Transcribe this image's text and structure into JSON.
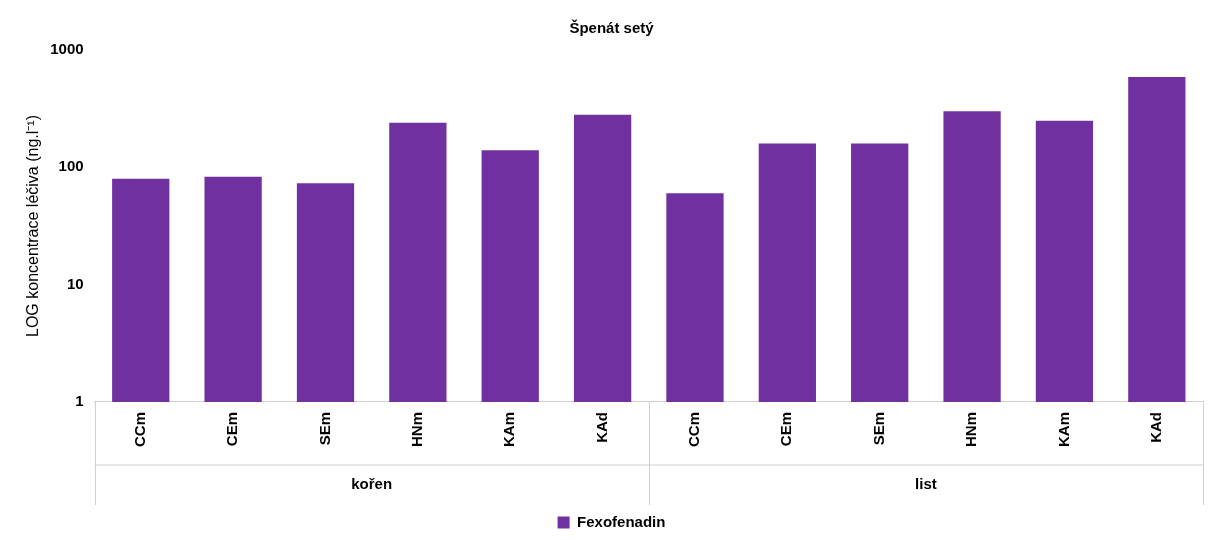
{
  "chart_data": {
    "type": "bar",
    "title": "Špenát setý",
    "ylabel": "LOG koncentrace léčiva (ng.l⁻¹)",
    "categories": [
      "CCm",
      "CEm",
      "SEm",
      "HNm",
      "KAm",
      "KAd",
      "CCm",
      "CEm",
      "SEm",
      "HNm",
      "KAm",
      "KAd"
    ],
    "series": [
      {
        "name": "Fexofenadin",
        "color": "#7030a0",
        "values": [
          80,
          83,
          73,
          240,
          140,
          280,
          60,
          160,
          160,
          300,
          250,
          590
        ]
      }
    ],
    "annotations": [
      "kořen",
      "list"
    ],
    "log": true,
    "ylim": [
      1,
      1000
    ],
    "yticks": [
      1,
      10,
      100,
      1000
    ],
    "grid": false,
    "legend": "bottom"
  }
}
